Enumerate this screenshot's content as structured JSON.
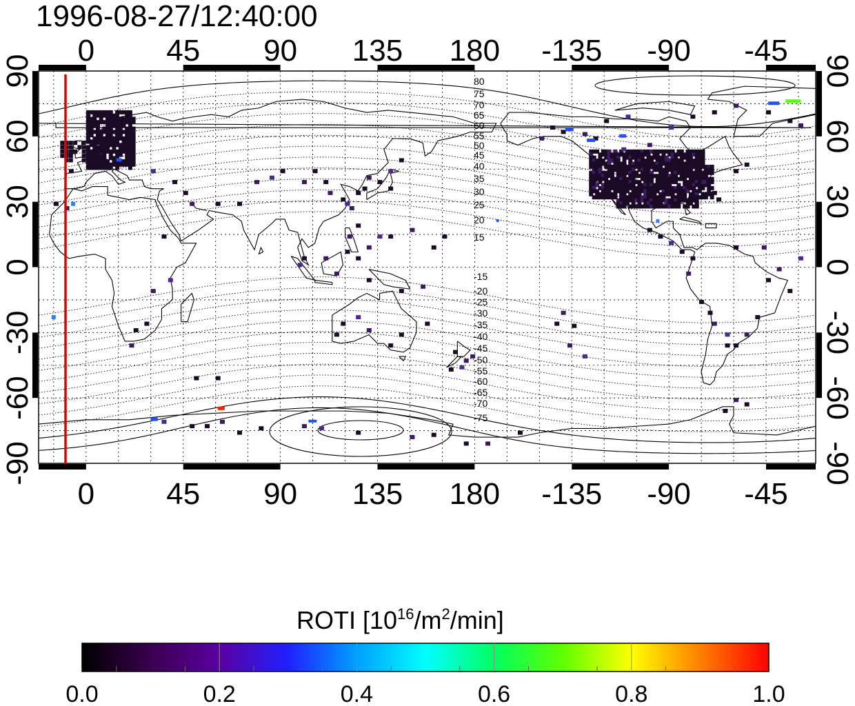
{
  "title": "1996-08-27/12:40:00",
  "map": {
    "lon_ticks_top": [
      "0",
      "45",
      "90",
      "135",
      "180",
      "-135",
      "-90",
      "-45"
    ],
    "lon_ticks_bottom": [
      "0",
      "45",
      "90",
      "135",
      "180",
      "-135",
      "-90",
      "-45"
    ],
    "lat_ticks_left": [
      "90",
      "60",
      "30",
      "0",
      "-30",
      "-60",
      "-90"
    ],
    "lat_ticks_right": [
      "90",
      "60",
      "30",
      "0",
      "-30",
      "-60",
      "-90"
    ],
    "magnetic_lat_labels_north": [
      "80",
      "75",
      "70",
      "65",
      "60",
      "55",
      "50",
      "45",
      "40",
      "35",
      "30",
      "25",
      "20",
      "15"
    ],
    "magnetic_lat_labels_south": [
      "-15",
      "-20",
      "-25",
      "-30",
      "-35",
      "-40",
      "-45",
      "-50",
      "-55",
      "-60",
      "-65",
      "-70",
      "-75"
    ],
    "terminator_color": "#dd0000",
    "grid": "dotted",
    "coastlines": "black outline"
  },
  "colorbar": {
    "label_main": "ROTI  [10",
    "label_sup1": "16",
    "label_mid": "/m",
    "label_sup2": "2",
    "label_end": "/min]",
    "ticks": [
      "0.0",
      "0.2",
      "0.4",
      "0.6",
      "0.8",
      "1.0"
    ],
    "colormap": [
      "#000000",
      "#3a0050",
      "#5a00a0",
      "#2020ff",
      "#00a0ff",
      "#00ffff",
      "#00ff60",
      "#60ff00",
      "#ffff00",
      "#ff8000",
      "#ff0000"
    ]
  },
  "cell_colors": {
    "very_low": "#1a0a25",
    "low": "#3a1a60",
    "mid": "#4a2a90",
    "blue": "#2050ff",
    "lightblue": "#3080ff",
    "green": "#60ff20",
    "red": "#ff2000"
  }
}
